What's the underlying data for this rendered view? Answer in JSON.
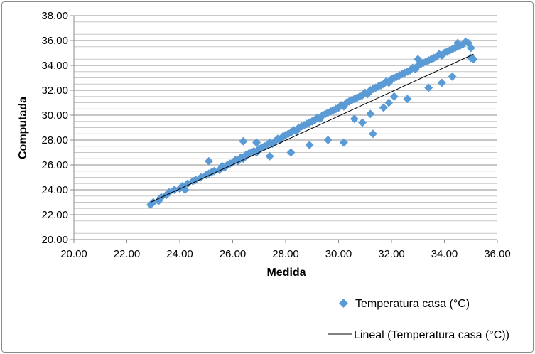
{
  "chart_data": {
    "type": "scatter",
    "xlabel": "Medida",
    "ylabel": "Computada",
    "xlim": [
      20,
      36
    ],
    "ylim": [
      20,
      38
    ],
    "x_ticks": [
      "20.00",
      "22.00",
      "24.00",
      "26.00",
      "28.00",
      "30.00",
      "32.00",
      "34.00",
      "36.00"
    ],
    "y_ticks": [
      "20.00",
      "22.00",
      "24.00",
      "26.00",
      "28.00",
      "30.00",
      "32.00",
      "34.00",
      "36.00",
      "38.00"
    ],
    "grid": true,
    "legend_position": "bottom-right",
    "series": [
      {
        "name": "Temperatura casa (°C)",
        "kind": "scatter",
        "color": "#5b9bd5",
        "marker": "diamond",
        "x": [
          22.9,
          23.0,
          23.2,
          23.3,
          23.5,
          23.6,
          23.8,
          24.0,
          24.1,
          24.3,
          24.5,
          24.6,
          24.8,
          25.0,
          25.1,
          25.2,
          25.3,
          25.5,
          25.6,
          25.7,
          25.8,
          25.9,
          26.0,
          26.1,
          26.2,
          26.3,
          26.4,
          26.5,
          26.6,
          26.7,
          26.8,
          26.9,
          27.0,
          27.1,
          27.2,
          27.3,
          27.4,
          27.5,
          27.6,
          27.7,
          27.8,
          27.9,
          28.0,
          28.1,
          28.2,
          28.3,
          28.4,
          28.5,
          28.6,
          28.7,
          28.8,
          28.9,
          29.0,
          29.1,
          29.2,
          29.3,
          29.4,
          29.5,
          29.6,
          29.7,
          29.8,
          29.9,
          30.0,
          30.1,
          30.2,
          30.3,
          30.4,
          30.5,
          30.6,
          30.7,
          30.8,
          30.9,
          31.0,
          31.1,
          31.2,
          31.3,
          31.4,
          31.5,
          31.6,
          31.7,
          31.8,
          31.9,
          32.0,
          32.1,
          32.2,
          32.3,
          32.4,
          32.5,
          32.6,
          32.7,
          32.8,
          32.9,
          33.0,
          33.1,
          33.2,
          33.3,
          33.4,
          33.5,
          33.6,
          33.7,
          33.8,
          33.9,
          34.0,
          34.1,
          34.2,
          34.3,
          34.4,
          34.5,
          34.6,
          34.7,
          34.8,
          34.9,
          35.0,
          25.1,
          26.4,
          28.9,
          30.2,
          30.9,
          31.3,
          31.7,
          32.1,
          33.0,
          34.5,
          35.0,
          35.1,
          24.2,
          26.9,
          27.4,
          28.2,
          29.6,
          30.6,
          31.2,
          31.9,
          32.6,
          33.4,
          33.9,
          34.3
        ],
        "y": [
          22.8,
          23.0,
          23.1,
          23.4,
          23.6,
          23.8,
          24.0,
          24.1,
          24.3,
          24.5,
          24.7,
          24.8,
          25.0,
          25.2,
          25.3,
          25.4,
          25.5,
          25.6,
          25.9,
          25.8,
          26.0,
          26.1,
          26.2,
          26.4,
          26.3,
          26.6,
          26.5,
          26.8,
          26.9,
          27.0,
          27.1,
          27.0,
          27.3,
          27.4,
          27.5,
          27.6,
          27.8,
          27.7,
          27.9,
          28.1,
          28.0,
          28.3,
          28.4,
          28.5,
          28.6,
          28.8,
          28.7,
          29.0,
          29.1,
          29.2,
          29.3,
          29.4,
          29.5,
          29.6,
          29.8,
          29.7,
          30.0,
          30.1,
          30.2,
          30.3,
          30.4,
          30.5,
          30.6,
          30.8,
          30.7,
          31.0,
          31.1,
          31.2,
          31.3,
          31.4,
          31.5,
          31.6,
          31.8,
          31.7,
          32.0,
          32.1,
          32.2,
          32.3,
          32.4,
          32.5,
          32.7,
          32.6,
          32.9,
          33.0,
          33.1,
          33.2,
          33.3,
          33.4,
          33.5,
          33.6,
          33.8,
          33.7,
          34.0,
          34.1,
          34.2,
          34.3,
          34.4,
          34.5,
          34.6,
          34.7,
          34.9,
          34.8,
          35.0,
          35.1,
          35.2,
          35.3,
          35.4,
          35.5,
          35.6,
          35.7,
          35.9,
          35.8,
          34.6,
          26.3,
          27.9,
          27.6,
          27.8,
          29.4,
          28.5,
          30.6,
          31.5,
          34.5,
          35.8,
          35.4,
          34.5,
          24.0,
          27.8,
          26.7,
          27.0,
          28.0,
          29.7,
          30.1,
          31.0,
          31.3,
          32.2,
          32.6,
          33.1
        ]
      },
      {
        "name": "Lineal (Temperatura casa (°C))",
        "kind": "trendline",
        "color": "#000000",
        "x": [
          22.9,
          35.1
        ],
        "y": [
          23.0,
          34.9
        ]
      }
    ]
  }
}
